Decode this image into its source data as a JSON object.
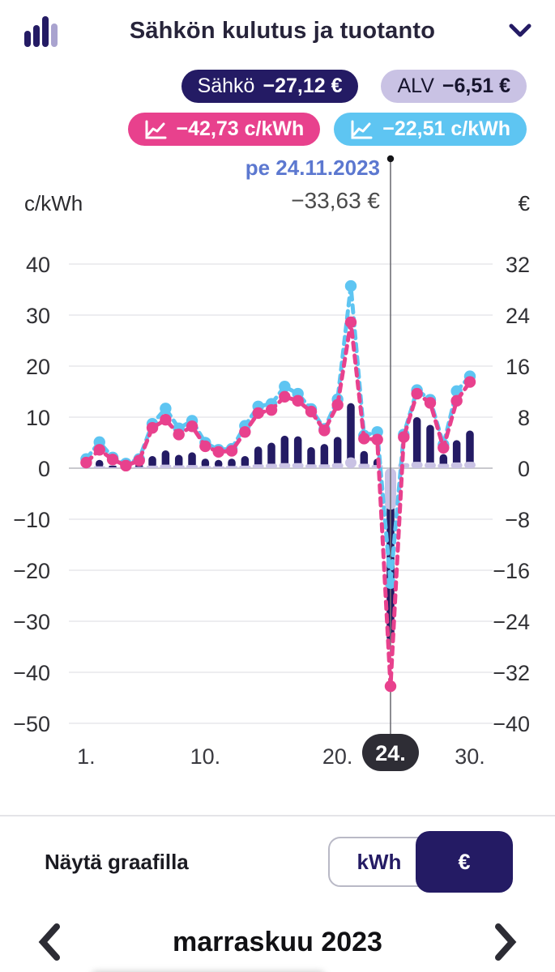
{
  "header": {
    "title": "Sähkön kulutus ja tuotanto"
  },
  "badges": {
    "sahko": {
      "label": "Sähkö",
      "value": "−27,12 €"
    },
    "alv": {
      "label": "ALV",
      "value": "−6,51 €"
    },
    "price_pink": {
      "value": "−42,73 c/kWh"
    },
    "price_blue": {
      "value": "−22,51 c/kWh"
    }
  },
  "tooltip": {
    "date": "pe 24.11.2023",
    "total": "−33,63 €"
  },
  "chart_data": {
    "type": "mixed-bar-line",
    "title": "Sähkön kulutus ja tuotanto — marraskuu 2023",
    "x": [
      1,
      2,
      3,
      4,
      5,
      6,
      7,
      8,
      9,
      10,
      11,
      12,
      13,
      14,
      15,
      16,
      17,
      18,
      19,
      20,
      21,
      22,
      23,
      24,
      25,
      26,
      27,
      28,
      29,
      30
    ],
    "x_axis": {
      "tick_days": [
        1,
        10,
        20,
        30
      ],
      "tick_labels": [
        "1.",
        "10.",
        "20.",
        "30."
      ],
      "selected_day": 24,
      "selected_label": "24."
    },
    "left_axis": {
      "label": "c/kWh",
      "ticks": [
        40,
        30,
        20,
        10,
        0,
        -10,
        -20,
        -30,
        -40,
        -50
      ]
    },
    "right_axis": {
      "label": "€",
      "ticks": [
        32,
        24,
        16,
        8,
        0,
        -8,
        -16,
        -24,
        -32,
        -40
      ]
    },
    "grid": true,
    "series": [
      {
        "name": "price-line-pink",
        "type": "line",
        "axis": "left",
        "unit": "c/kWh",
        "color": "#e8418d",
        "values": [
          1.1,
          3.6,
          1.7,
          0.5,
          1.5,
          7.9,
          9.5,
          6.6,
          8.2,
          4.3,
          3.2,
          3.4,
          7.1,
          10.8,
          11.4,
          14.0,
          13.2,
          11.1,
          7.4,
          12.4,
          28.6,
          5.8,
          5.6,
          -42.73,
          6.1,
          14.6,
          12.8,
          4.0,
          13.2,
          16.9
        ]
      },
      {
        "name": "price-line-blue",
        "type": "line",
        "axis": "left",
        "unit": "c/kWh",
        "color": "#5ec5f2",
        "values": [
          1.8,
          5.1,
          2.1,
          0.9,
          1.8,
          8.7,
          11.7,
          7.8,
          9.3,
          5.0,
          3.6,
          3.8,
          8.3,
          12.1,
          12.6,
          16.0,
          14.6,
          11.6,
          7.7,
          13.5,
          35.7,
          6.4,
          7.1,
          -22.51,
          6.6,
          15.3,
          13.4,
          4.6,
          15.1,
          18.0
        ]
      },
      {
        "name": "sahko-bars-eur",
        "type": "bar",
        "axis": "right",
        "unit": "€",
        "color": "#241b64",
        "width": 9.5,
        "values": [
          0.6,
          1.3,
          0.4,
          0.3,
          0.6,
          1.9,
          2.8,
          2.1,
          2.5,
          1.5,
          1.3,
          1.5,
          1.9,
          3.4,
          4.0,
          5.1,
          5.0,
          3.3,
          3.8,
          4.9,
          10.2,
          2.7,
          1.5,
          -27.12,
          0.5,
          8.0,
          6.8,
          2.2,
          4.4,
          5.9
        ]
      },
      {
        "name": "alv-bars-eur",
        "type": "bar",
        "axis": "right",
        "unit": "€",
        "color": "#c9c2e4",
        "width": 14,
        "values": [
          0.15,
          0.3,
          0.15,
          0.1,
          0.2,
          0.4,
          0.55,
          0.45,
          0.5,
          0.35,
          0.3,
          0.35,
          0.4,
          0.6,
          0.7,
          0.8,
          0.8,
          0.6,
          0.6,
          0.8,
          1.7,
          0.7,
          0.5,
          -6.51,
          0.8,
          1.0,
          0.9,
          0.7,
          0.9,
          1.0
        ]
      }
    ],
    "cursor": {
      "day": 24,
      "dot_color": "#141417",
      "line_color": "#707076"
    },
    "selected_pill": {
      "bg": "#2e2d35",
      "text_color": "#ffffff"
    }
  },
  "controls": {
    "label": "Näytä graafilla",
    "options": [
      "kWh",
      "€"
    ],
    "selected": "€"
  },
  "footer": {
    "month": "marraskuu 2023"
  },
  "colors": {
    "navy": "#241b64",
    "lavender": "#c9c2e4",
    "pink": "#e8418d",
    "blue": "#5ec5f2",
    "date_text": "#5c78d0",
    "gridline": "#ededf0",
    "zero_line": "#c9c9ce"
  }
}
